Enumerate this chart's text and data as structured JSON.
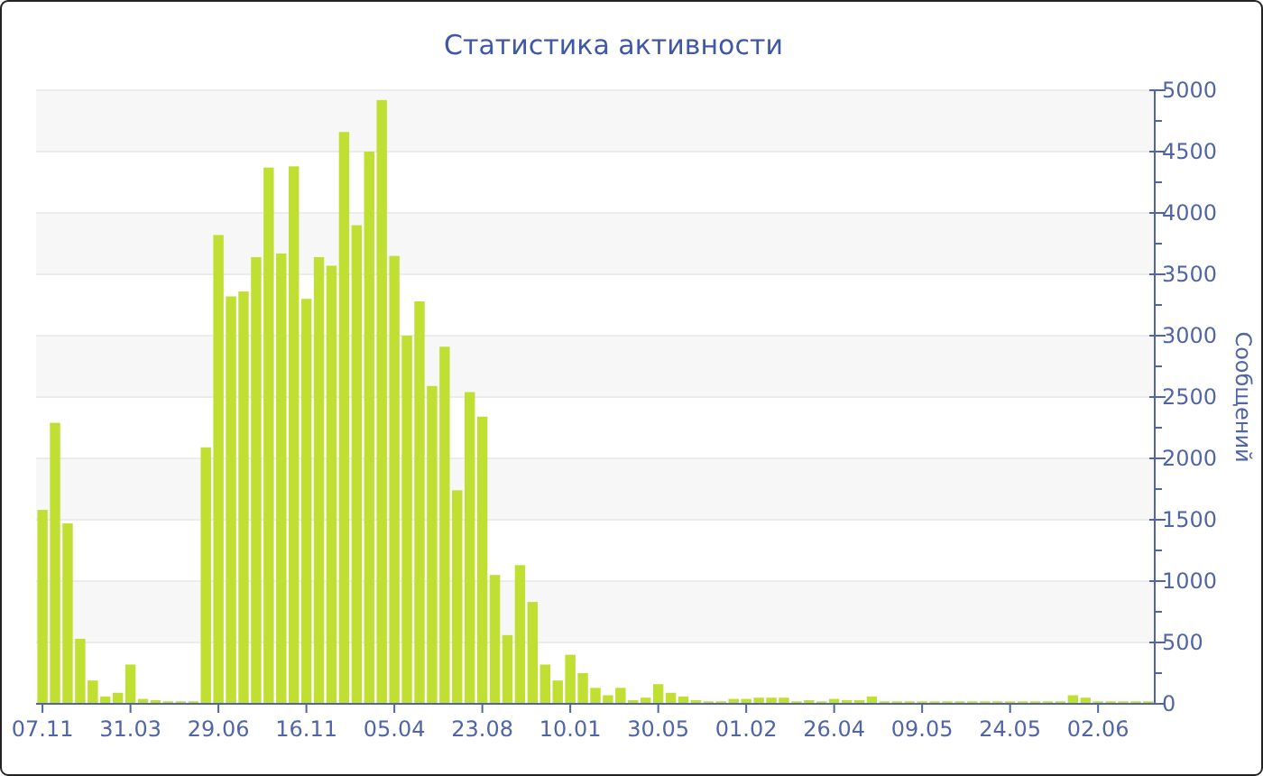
{
  "chart_data": {
    "type": "bar",
    "title": "Статистика активности",
    "ylabel": "Сообщений",
    "categories": [
      "07.11",
      null,
      null,
      null,
      null,
      null,
      null,
      "31.03",
      null,
      null,
      null,
      null,
      null,
      null,
      "29.06",
      null,
      null,
      null,
      null,
      null,
      null,
      "16.11",
      null,
      null,
      null,
      null,
      null,
      null,
      "05.04",
      null,
      null,
      null,
      null,
      null,
      null,
      "23.08",
      null,
      null,
      null,
      null,
      null,
      null,
      "10.01",
      null,
      null,
      null,
      null,
      null,
      null,
      "30.05",
      null,
      null,
      null,
      null,
      null,
      null,
      "01.02",
      null,
      null,
      null,
      null,
      null,
      null,
      "26.04",
      null,
      null,
      null,
      null,
      null,
      null,
      "09.05",
      null,
      null,
      null,
      null,
      null,
      null,
      "24.05",
      null,
      null,
      null,
      null,
      null,
      null,
      "02.06",
      null,
      null,
      null,
      null
    ],
    "values": [
      1580,
      2290,
      1470,
      530,
      190,
      60,
      90,
      320,
      40,
      30,
      20,
      20,
      20,
      2090,
      3820,
      3320,
      3360,
      3640,
      4370,
      3670,
      4380,
      3300,
      3640,
      3570,
      4660,
      3900,
      4500,
      4920,
      3650,
      3000,
      3280,
      2590,
      2910,
      1740,
      2540,
      2340,
      1050,
      560,
      1130,
      830,
      320,
      190,
      400,
      250,
      130,
      70,
      130,
      30,
      50,
      160,
      90,
      60,
      30,
      20,
      20,
      40,
      40,
      50,
      50,
      50,
      20,
      30,
      20,
      40,
      30,
      30,
      60,
      20,
      20,
      20,
      20,
      20,
      20,
      20,
      20,
      20,
      20,
      20,
      20,
      20,
      20,
      20,
      70,
      50,
      20,
      20,
      20,
      20,
      20
    ],
    "color": "#bfe033",
    "ylim": [
      0,
      5000
    ],
    "yticks": [
      0,
      500,
      1000,
      1500,
      2000,
      2500,
      3000,
      3500,
      4000,
      4500,
      5000
    ],
    "grid": "y"
  }
}
